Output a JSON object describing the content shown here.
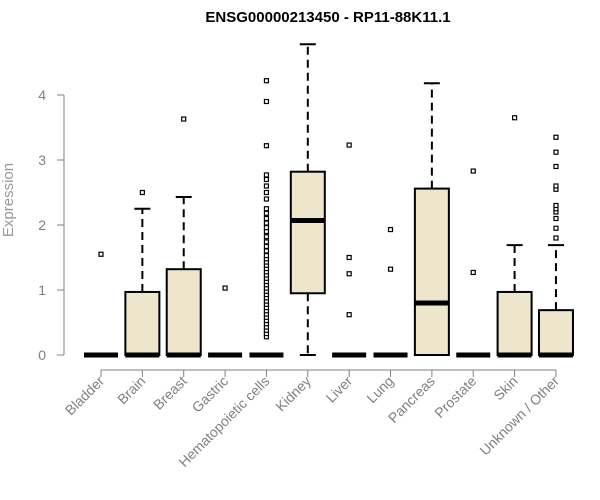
{
  "chart_data": {
    "type": "boxplot",
    "title": "ENSG00000213450 - RP11-88K11.1",
    "xlabel": "",
    "ylabel": "Expression",
    "ylim": [
      0,
      4.8
    ],
    "yticks": [
      0,
      1,
      2,
      3,
      4
    ],
    "categories": [
      "Bladder",
      "Brain",
      "Breast",
      "Gastric",
      "Hematopoietic cells",
      "Kidney",
      "Liver",
      "Lung",
      "Pancreas",
      "Prostate",
      "Skin",
      "Unknown / Other"
    ],
    "boxes": [
      {
        "q1": 0,
        "median": 0,
        "q3": 0,
        "whisker_low": 0,
        "whisker_high": 0,
        "outliers": [
          1.55
        ]
      },
      {
        "q1": 0,
        "median": 0,
        "q3": 0.97,
        "whisker_low": 0,
        "whisker_high": 2.25,
        "outliers": [
          2.5
        ]
      },
      {
        "q1": 0,
        "median": 0,
        "q3": 1.32,
        "whisker_low": 0,
        "whisker_high": 2.43,
        "outliers": [
          3.63
        ]
      },
      {
        "q1": 0,
        "median": 0,
        "q3": 0,
        "whisker_low": 0,
        "whisker_high": 0,
        "outliers": [
          1.03
        ]
      },
      {
        "q1": 0,
        "median": 0,
        "q3": 0,
        "whisker_low": 0,
        "whisker_high": 0,
        "outliers": [
          0.28,
          0.33,
          0.38,
          0.43,
          0.48,
          0.53,
          0.58,
          0.63,
          0.68,
          0.73,
          0.78,
          0.83,
          0.88,
          0.93,
          0.98,
          1.03,
          1.08,
          1.13,
          1.18,
          1.23,
          1.28,
          1.33,
          1.38,
          1.43,
          1.48,
          1.53,
          1.6,
          1.67,
          1.74,
          1.82,
          1.9,
          1.96,
          2.03,
          2.1,
          2.18,
          2.25,
          2.4,
          2.5,
          2.6,
          2.7,
          2.77,
          3.22,
          3.9,
          4.22
        ]
      },
      {
        "q1": 0.95,
        "median": 2.07,
        "q3": 2.82,
        "whisker_low": 0,
        "whisker_high": 4.78,
        "outliers": []
      },
      {
        "q1": 0,
        "median": 0,
        "q3": 0,
        "whisker_low": 0,
        "whisker_high": 0,
        "outliers": [
          0.62,
          1.25,
          1.5,
          3.23
        ]
      },
      {
        "q1": 0,
        "median": 0,
        "q3": 0,
        "whisker_low": 0,
        "whisker_high": 0,
        "outliers": [
          1.32,
          1.93
        ]
      },
      {
        "q1": 0,
        "median": 0.8,
        "q3": 2.56,
        "whisker_low": 0,
        "whisker_high": 4.18,
        "outliers": []
      },
      {
        "q1": 0,
        "median": 0,
        "q3": 0,
        "whisker_low": 0,
        "whisker_high": 0,
        "outliers": [
          1.27,
          2.83
        ]
      },
      {
        "q1": 0,
        "median": 0,
        "q3": 0.97,
        "whisker_low": 0,
        "whisker_high": 1.69,
        "outliers": [
          3.65
        ]
      },
      {
        "q1": 0,
        "median": 0,
        "q3": 0.69,
        "whisker_low": 0,
        "whisker_high": 1.69,
        "outliers": [
          1.8,
          1.95,
          2.1,
          2.2,
          2.25,
          2.3,
          2.55,
          2.6,
          2.9,
          3.12,
          3.35
        ]
      }
    ],
    "box_fill": "#ede6cc",
    "grid": false,
    "legend": "none"
  }
}
